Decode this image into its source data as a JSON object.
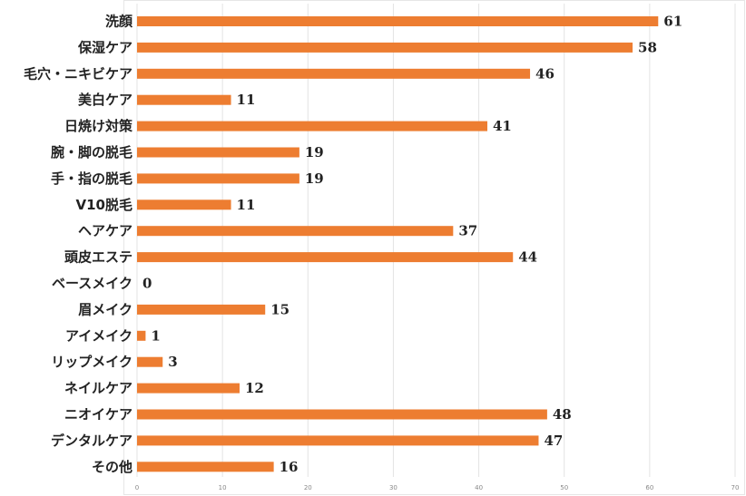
{
  "chart_data": {
    "type": "bar",
    "orientation": "horizontal",
    "categories": [
      "洗顔",
      "保湿ケア",
      "毛穴・ニキビケア",
      "美白ケア",
      "日焼け対策",
      "腕・脚の脱毛",
      "手・指の脱毛",
      "V10脱毛",
      "ヘアケア",
      "頭皮エステ",
      "ベースメイク",
      "眉メイク",
      "アイメイク",
      "リップメイク",
      "ネイルケア",
      "ニオイケア",
      "デンタルケア",
      "その他"
    ],
    "values": [
      61,
      58,
      46,
      11,
      41,
      19,
      19,
      11,
      37,
      44,
      0,
      15,
      1,
      3,
      12,
      48,
      47,
      16
    ],
    "xticks": [
      0,
      10,
      20,
      30,
      40,
      50,
      60,
      70
    ],
    "xlim": [
      0,
      70
    ],
    "title": "",
    "xlabel": "",
    "ylabel": "",
    "grid": true,
    "bar_color": "#ED7D31"
  }
}
